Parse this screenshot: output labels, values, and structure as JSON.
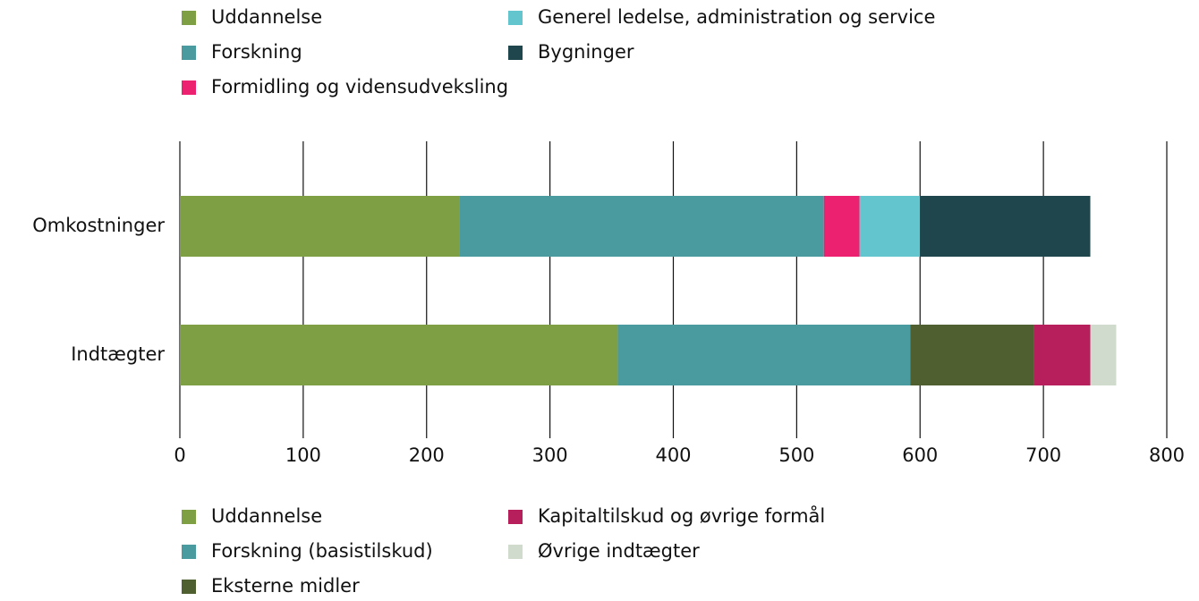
{
  "chart_data": {
    "type": "stacked_barh",
    "categories": [
      "Omkostninger",
      "Indtægter"
    ],
    "series": [
      {
        "name": "Uddannelse",
        "color": "#7f9f45",
        "legend": "top",
        "values": [
          227,
          null
        ]
      },
      {
        "name": "Forskning",
        "color": "#4a9ba0",
        "legend": "top",
        "values": [
          295,
          null
        ]
      },
      {
        "name": "Formidling og vidensudveksling",
        "color": "#ec2270",
        "legend": "top",
        "values": [
          29,
          null
        ]
      },
      {
        "name": "Generel ledelse, administration og service",
        "color": "#63c6cf",
        "legend": "top",
        "values": [
          49,
          null
        ]
      },
      {
        "name": "Bygninger",
        "color": "#1e464c",
        "legend": "top",
        "values": [
          138,
          null
        ]
      },
      {
        "name": "Uddannelse",
        "color": "#7f9f45",
        "legend": "bottom",
        "values": [
          null,
          355
        ]
      },
      {
        "name": "Forskning (basistilskud)",
        "color": "#4a9ba0",
        "legend": "bottom",
        "values": [
          null,
          237
        ]
      },
      {
        "name": "Eksterne midler",
        "color": "#4f5f2f",
        "legend": "bottom",
        "values": [
          null,
          100
        ]
      },
      {
        "name": "Kapitaltilskud og øvrige formål",
        "color": "#b71f5c",
        "legend": "bottom",
        "values": [
          null,
          46
        ]
      },
      {
        "name": "Øvrige indtægter",
        "color": "#d0dacd",
        "legend": "bottom",
        "values": [
          null,
          21
        ]
      }
    ],
    "xlim": [
      0,
      800
    ],
    "xticks": [
      0,
      100,
      200,
      300,
      400,
      500,
      600,
      700,
      800
    ],
    "grid": true
  }
}
